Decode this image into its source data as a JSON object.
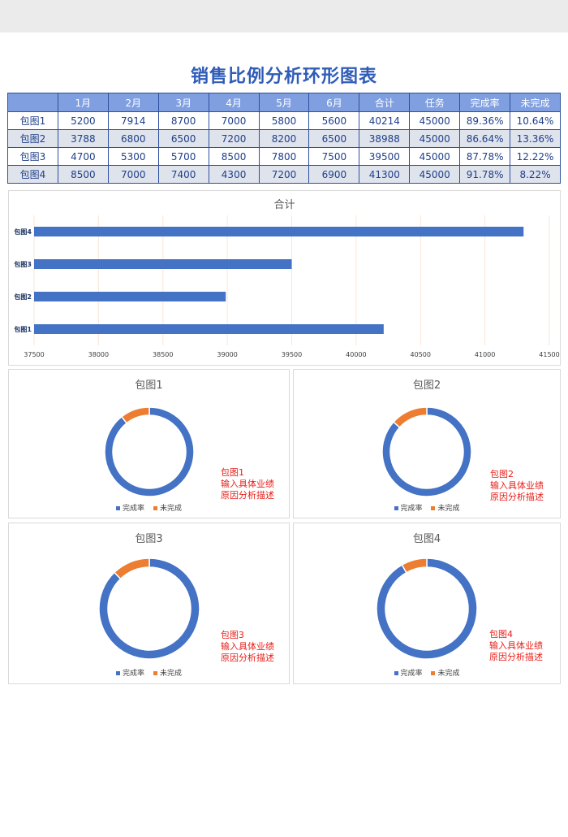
{
  "title": "销售比例分析环形图表",
  "colors": {
    "complete": "#4472c4",
    "incomplete": "#ed7d31",
    "header": "#7f9fe0",
    "grid": "#fbe5d6"
  },
  "table": {
    "headers": [
      "",
      "1月",
      "2月",
      "3月",
      "4月",
      "5月",
      "6月",
      "合计",
      "任务",
      "完成率",
      "未完成"
    ],
    "rows": [
      [
        "包图1",
        "5200",
        "7914",
        "8700",
        "7000",
        "5800",
        "5600",
        "40214",
        "45000",
        "89.36%",
        "10.64%"
      ],
      [
        "包图2",
        "3788",
        "6800",
        "6500",
        "7200",
        "8200",
        "6500",
        "38988",
        "45000",
        "86.64%",
        "13.36%"
      ],
      [
        "包图3",
        "4700",
        "5300",
        "5700",
        "8500",
        "7800",
        "7500",
        "39500",
        "45000",
        "87.78%",
        "12.22%"
      ],
      [
        "包图4",
        "8500",
        "7000",
        "7400",
        "4300",
        "7200",
        "6900",
        "41300",
        "45000",
        "91.78%",
        "8.22%"
      ]
    ]
  },
  "chart_data": [
    {
      "type": "bar",
      "orientation": "horizontal",
      "title": "合计",
      "categories": [
        "包图1",
        "包图2",
        "包图3",
        "包图4"
      ],
      "values": [
        40214,
        38988,
        39500,
        41300
      ],
      "xlim": [
        37500,
        41500
      ],
      "xticks": [
        "37500",
        "38000",
        "38500",
        "39000",
        "39500",
        "40000",
        "40500",
        "41000",
        "41500"
      ],
      "grid": true
    },
    {
      "type": "pie",
      "title": "包图1",
      "categories": [
        "完成率",
        "未完成"
      ],
      "values": [
        89.36,
        10.64
      ],
      "note": "包图1\n输入具体业绩\n原因分析描述"
    },
    {
      "type": "pie",
      "title": "包图2",
      "categories": [
        "完成率",
        "未完成"
      ],
      "values": [
        86.64,
        13.36
      ],
      "note": "包图2\n输入具体业绩\n原因分析描述"
    },
    {
      "type": "pie",
      "title": "包图3",
      "categories": [
        "完成率",
        "未完成"
      ],
      "values": [
        87.78,
        12.22
      ],
      "note": "包图3\n输入具体业绩\n原因分析描述"
    },
    {
      "type": "pie",
      "title": "包图4",
      "categories": [
        "完成率",
        "未完成"
      ],
      "values": [
        91.78,
        8.22
      ],
      "note": "包图4\n输入具体业绩\n原因分析描述"
    }
  ]
}
